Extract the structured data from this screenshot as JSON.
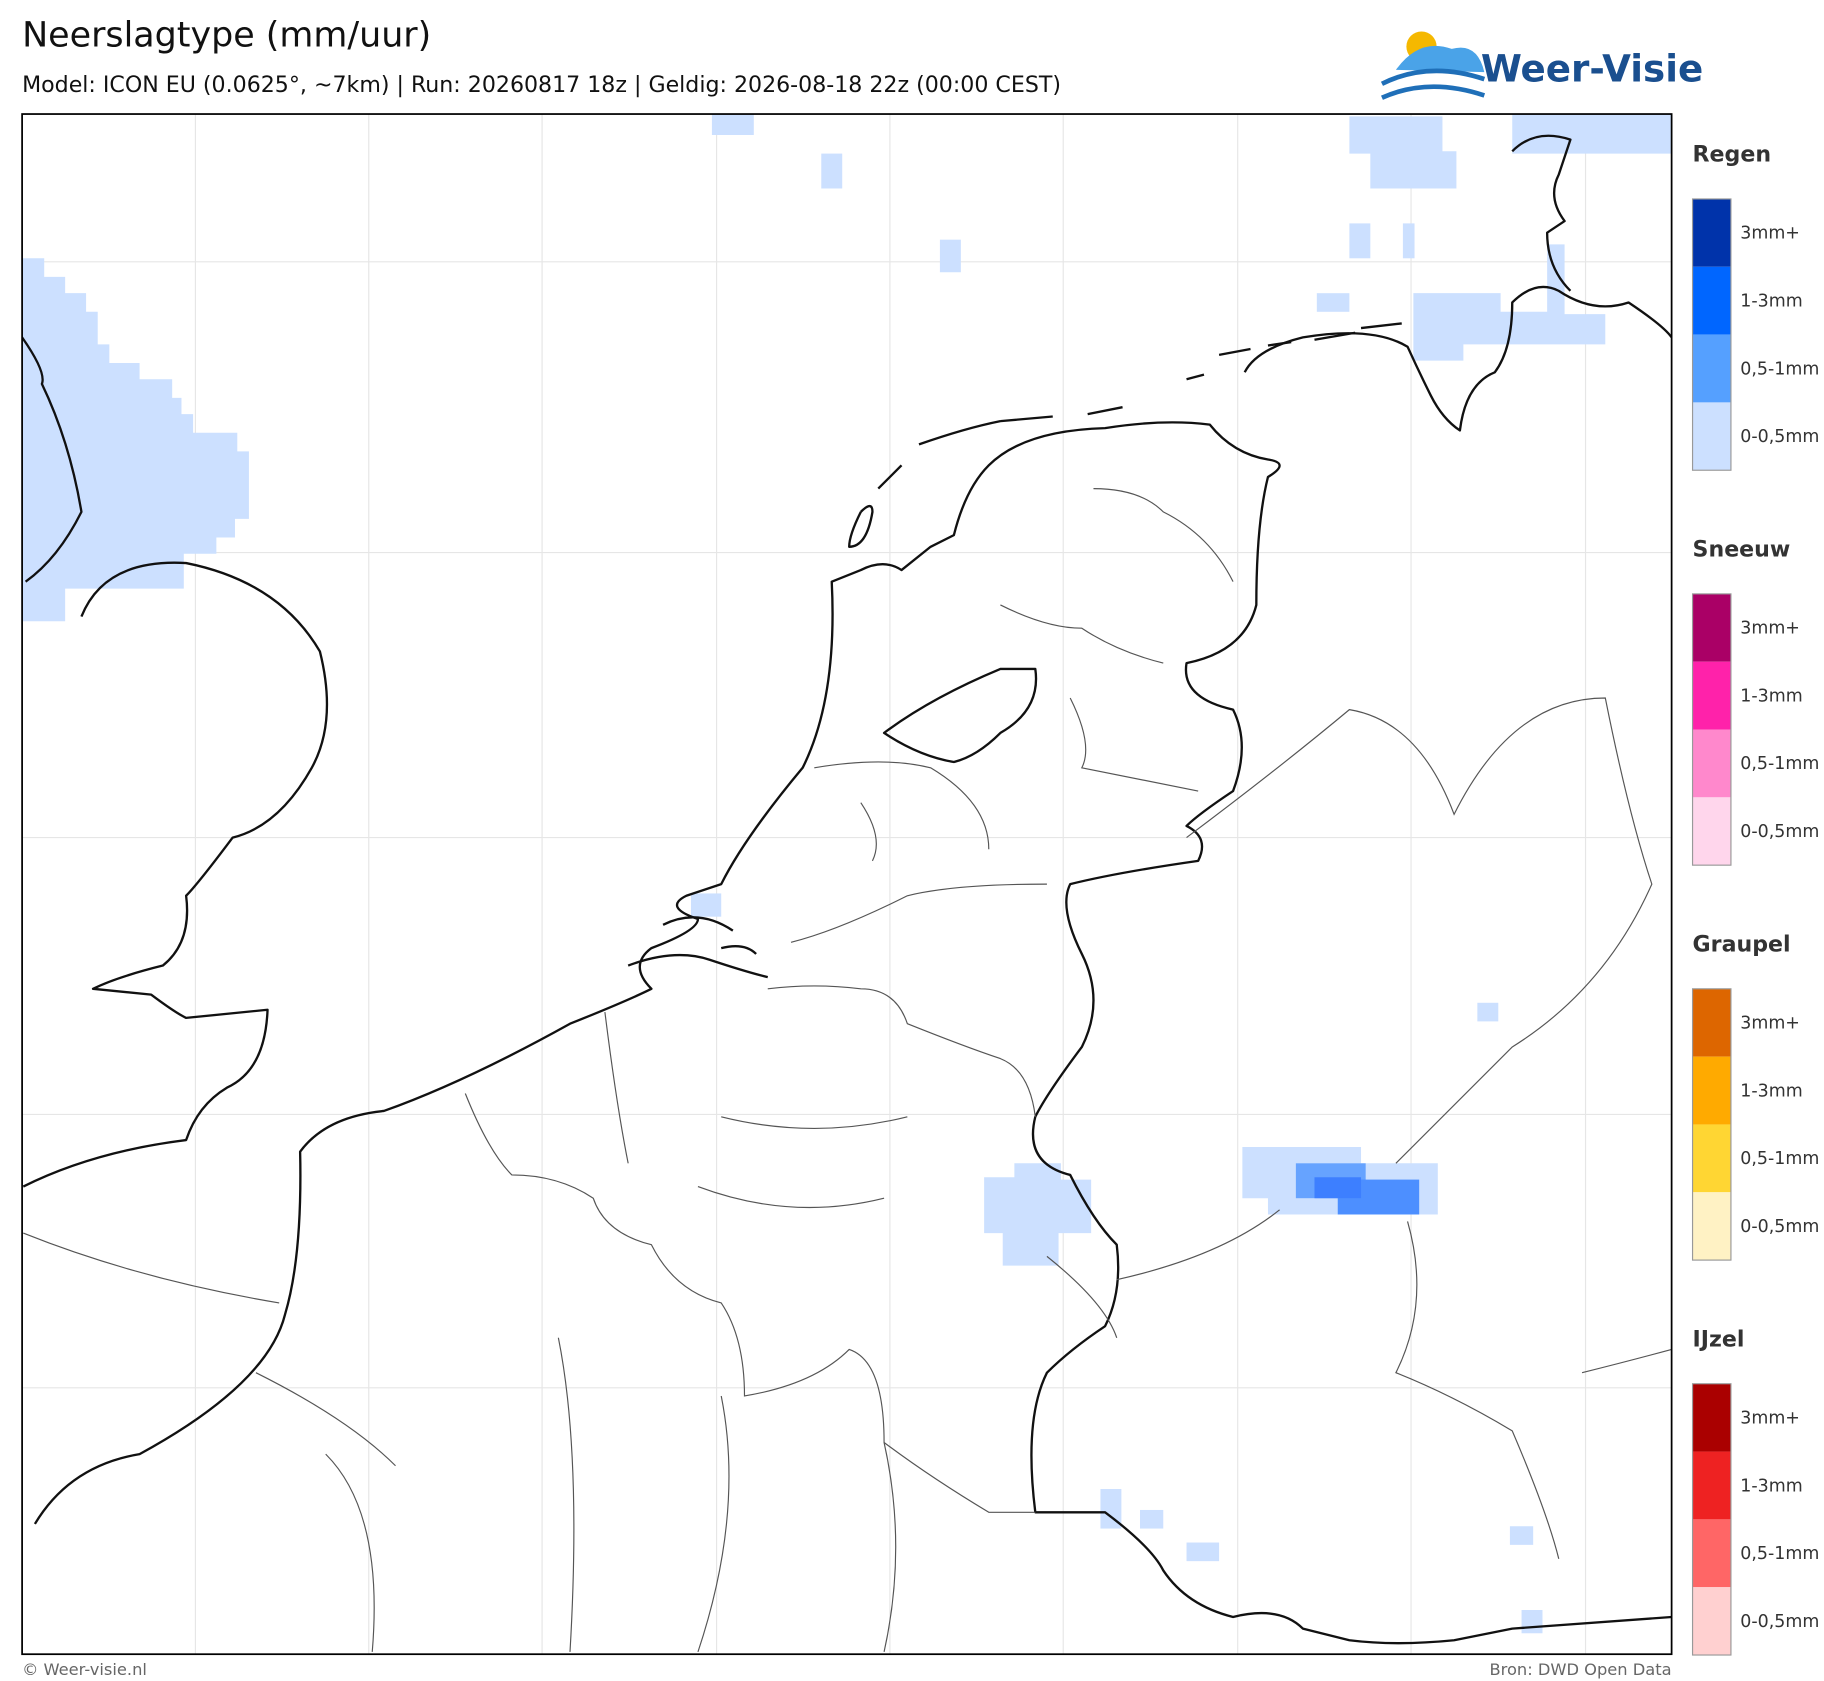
{
  "header": {
    "title": "Neerslagtype (mm/uur)",
    "subtitle": "Model: ICON EU (0.0625°, ~7km)  |  Run: 20260817 18z  |  Geldig: 2026-08-18 22z (00:00 CEST)"
  },
  "logo": {
    "text": "Weer-Visie"
  },
  "legend": {
    "sections": [
      {
        "title": "Regen",
        "items": [
          {
            "label": "3mm+",
            "color": "#0033aa"
          },
          {
            "label": "1-3mm",
            "color": "#0066ff"
          },
          {
            "label": "0,5-1mm",
            "color": "#55a0ff"
          },
          {
            "label": "0-0,5mm",
            "color": "#cce0ff"
          }
        ]
      },
      {
        "title": "Sneeuw",
        "items": [
          {
            "label": "3mm+",
            "color": "#aa0066"
          },
          {
            "label": "1-3mm",
            "color": "#ff22aa"
          },
          {
            "label": "0,5-1mm",
            "color": "#ff88cc"
          },
          {
            "label": "0-0,5mm",
            "color": "#ffd6ec"
          }
        ]
      },
      {
        "title": "Graupel",
        "items": [
          {
            "label": "3mm+",
            "color": "#dd6600"
          },
          {
            "label": "1-3mm",
            "color": "#ffaa00"
          },
          {
            "label": "0,5-1mm",
            "color": "#ffd633"
          },
          {
            "label": "0-0,5mm",
            "color": "#fff2c4"
          }
        ]
      },
      {
        "title": "IJzel",
        "items": [
          {
            "label": "3mm+",
            "color": "#aa0000"
          },
          {
            "label": "1-3mm",
            "color": "#ee2222"
          },
          {
            "label": "0,5-1mm",
            "color": "#ff6666"
          },
          {
            "label": "0-0,5mm",
            "color": "#ffd0d0"
          }
        ]
      }
    ]
  },
  "footer": {
    "left": "© Weer-visie.nl",
    "right": "Bron: DWD Open Data"
  }
}
